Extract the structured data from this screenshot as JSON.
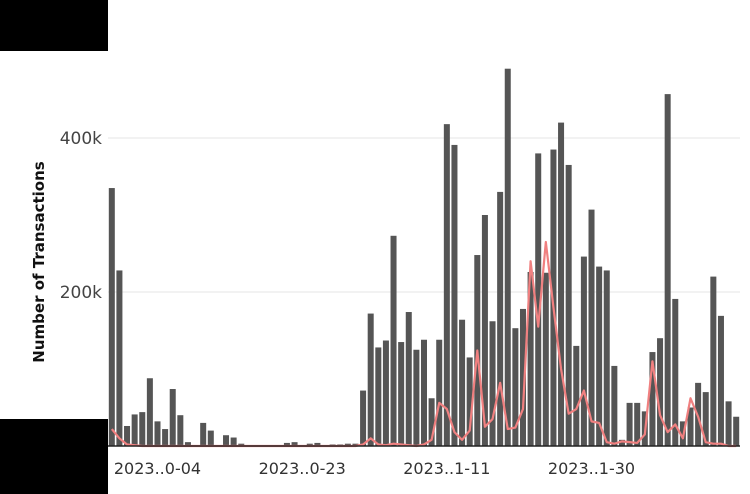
{
  "chart_data": {
    "type": "bar",
    "xlabel": "",
    "ylabel": "Number of Transactions",
    "ylim": [
      0,
      500000
    ],
    "y_ticks": [
      {
        "value": 200000,
        "label": "200k"
      },
      {
        "value": 400000,
        "label": "400k"
      }
    ],
    "x_ticks": [
      {
        "index": 6,
        "label": "2023..0-04"
      },
      {
        "index": 25,
        "label": "2023..0-23"
      },
      {
        "index": 44,
        "label": "2023..1-11"
      },
      {
        "index": 63,
        "label": "2023..1-30"
      }
    ],
    "grid": true,
    "legend": "none",
    "colors": {
      "bars": "#555555",
      "line": "#f08080",
      "grid": "#e6e6e6",
      "axis": "#222222"
    },
    "series": [
      {
        "type": "bar",
        "values": [
          335000,
          228000,
          26000,
          41000,
          44000,
          88000,
          32000,
          22000,
          74000,
          40000,
          5000,
          0,
          30000,
          20000,
          0,
          14000,
          11000,
          3000,
          0,
          0,
          0,
          0,
          0,
          4000,
          5000,
          0,
          3000,
          4000,
          0,
          2000,
          2000,
          3000,
          3000,
          72000,
          172000,
          128000,
          137000,
          273000,
          135000,
          174000,
          125000,
          138000,
          62000,
          138000,
          418000,
          391000,
          164000,
          115000,
          248000,
          300000,
          162000,
          330000,
          490000,
          153000,
          178000,
          226000,
          380000,
          225000,
          385000,
          420000,
          365000,
          130000,
          246000,
          307000,
          233000,
          228000,
          104000,
          8000,
          56000,
          56000,
          45000,
          122000,
          140000,
          457000,
          191000,
          32000,
          50000,
          82000,
          70000,
          220000,
          169000,
          58000,
          38000
        ]
      },
      {
        "type": "line",
        "values": [
          22000,
          10000,
          2000,
          1000,
          0,
          0,
          0,
          0,
          0,
          0,
          0,
          0,
          0,
          0,
          0,
          0,
          0,
          0,
          0,
          0,
          0,
          0,
          0,
          0,
          0,
          0,
          0,
          0,
          0,
          0,
          0,
          0,
          0,
          2000,
          10000,
          2000,
          1000,
          3000,
          2000,
          1000,
          0,
          2000,
          8000,
          56000,
          48000,
          18000,
          8000,
          20000,
          124000,
          25000,
          35000,
          82000,
          22000,
          24000,
          48000,
          240000,
          155000,
          265000,
          180000,
          100000,
          42000,
          48000,
          72000,
          32000,
          30000,
          5000,
          3000,
          6000,
          5000,
          4000,
          15000,
          110000,
          40000,
          18000,
          28000,
          10000,
          62000,
          38000,
          5000,
          3000,
          3000,
          0,
          0
        ]
      }
    ]
  }
}
